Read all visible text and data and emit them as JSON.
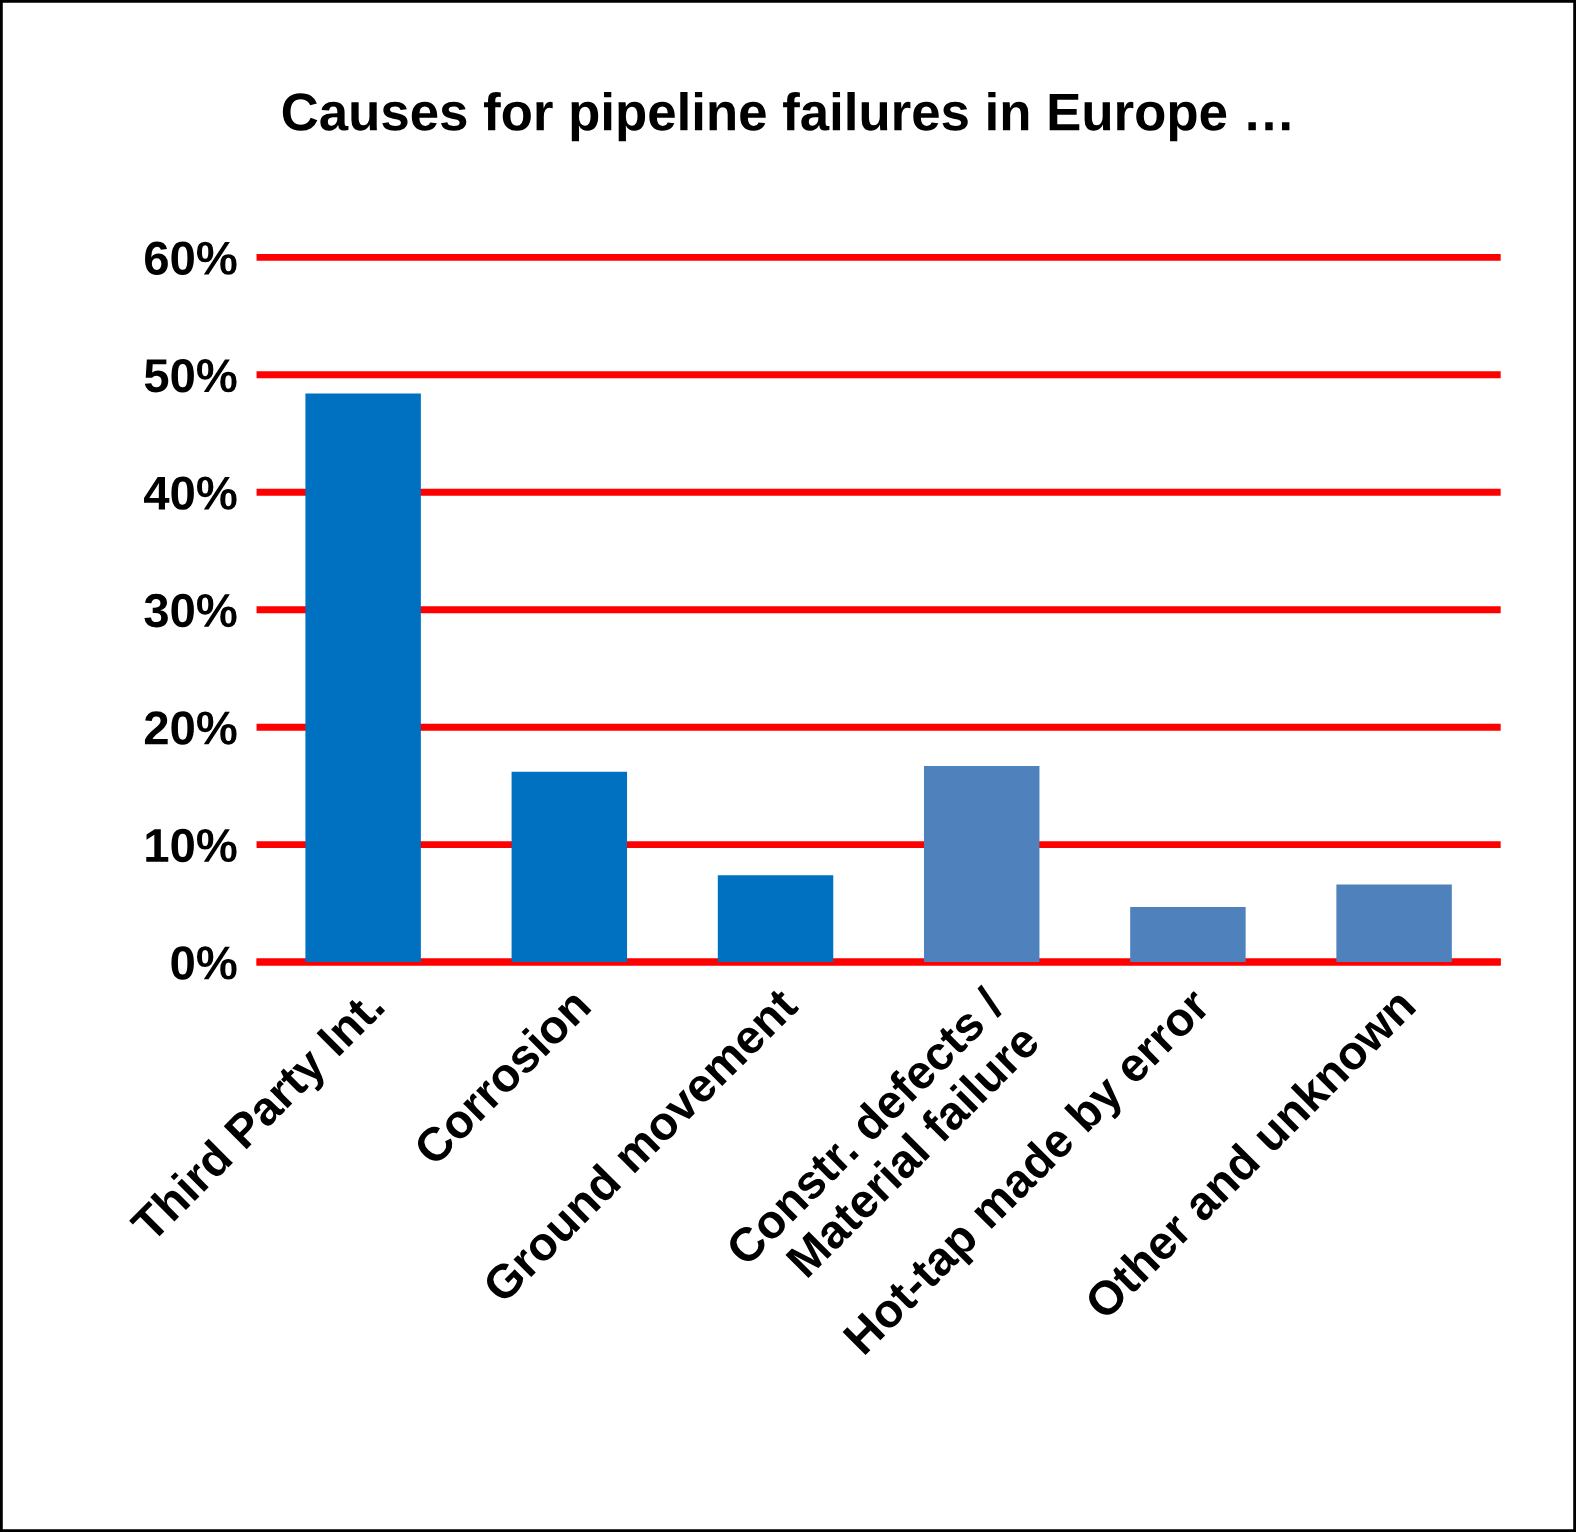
{
  "chart_data": {
    "type": "bar",
    "title": "Causes for pipeline failures in Europe …",
    "categories": [
      "Third Party Int.",
      "Corrosion",
      "Ground movement",
      "Constr. defects /\nMaterial failure",
      "Hot-tap made by error",
      "Other and unknown"
    ],
    "values": [
      48.4,
      16.2,
      7.4,
      16.7,
      4.7,
      6.6
    ],
    "colors": [
      "#0070c0",
      "#0070c0",
      "#0070c0",
      "#4f81bd",
      "#4f81bd",
      "#4f81bd"
    ],
    "ylim": [
      0,
      60
    ],
    "yticks": [
      {
        "value": 0,
        "label": "0%"
      },
      {
        "value": 10,
        "label": "10%"
      },
      {
        "value": 20,
        "label": "20%"
      },
      {
        "value": 30,
        "label": "30%"
      },
      {
        "value": 40,
        "label": "40%"
      },
      {
        "value": 50,
        "label": "50%"
      },
      {
        "value": 60,
        "label": "60%"
      }
    ],
    "grid": "y"
  }
}
